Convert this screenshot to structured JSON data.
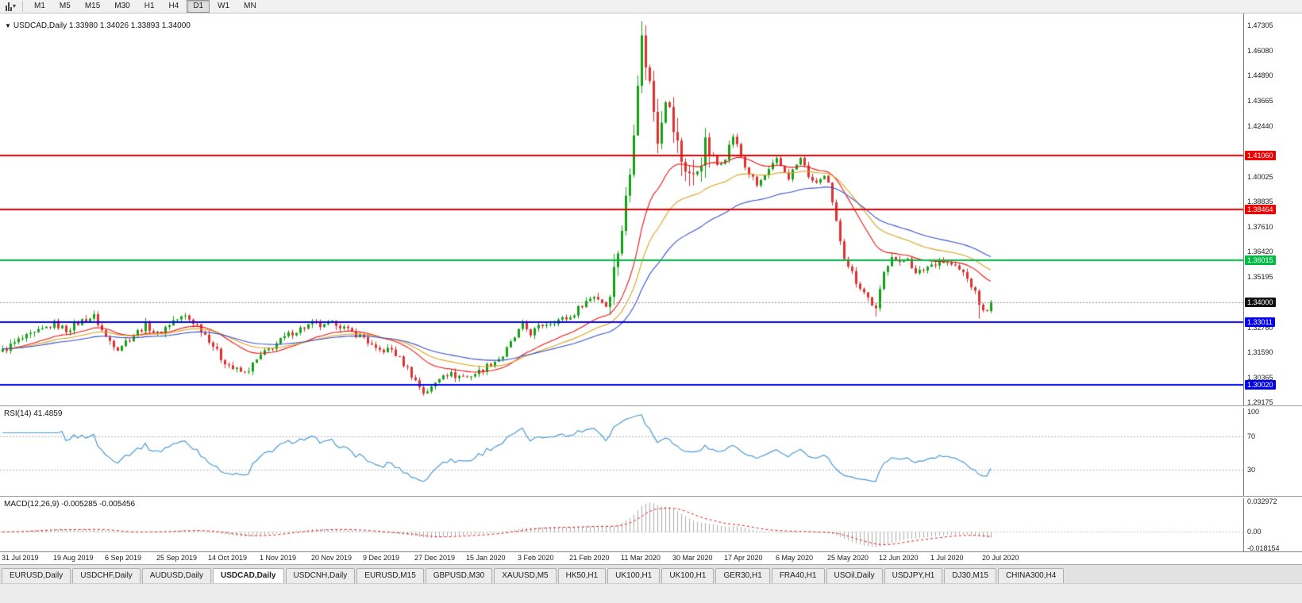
{
  "toolbar": {
    "timeframes": [
      "M1",
      "M5",
      "M15",
      "M30",
      "H1",
      "H4",
      "D1",
      "W1",
      "MN"
    ],
    "active_timeframe": "D1"
  },
  "icons": {
    "caret_down": "▾",
    "title_marker": "▼"
  },
  "tabs": {
    "items": [
      "EURUSD,Daily",
      "USDCHF,Daily",
      "AUDUSD,Daily",
      "USDCAD,Daily",
      "USDCNH,Daily",
      "EURUSD,M15",
      "GBPUSD,M30",
      "XAUUSD,M5",
      "HK50,H1",
      "UK100,H1",
      "UK100,H1",
      "GER30,H1",
      "FRA40,H1",
      "USOil,Daily",
      "USDJPY,H1",
      "DJ30,M15",
      "CHINA300,H4"
    ],
    "active_index": 3
  },
  "chart_data": {
    "type": "candlestick",
    "symbol": "USDCAD",
    "timeframe": "Daily",
    "title": "USDCAD,Daily 1.33980 1.34026 1.33893 1.34000",
    "last_ohlc": {
      "open": 1.3398,
      "high": 1.34026,
      "low": 1.33893,
      "close": 1.34
    },
    "candle_count": 250,
    "candles_per_label": 13,
    "x_labels": [
      "31 Jul 2019",
      "19 Aug 2019",
      "6 Sep 2019",
      "25 Sep 2019",
      "14 Oct 2019",
      "1 Nov 2019",
      "20 Nov 2019",
      "9 Dec 2019",
      "27 Dec 2019",
      "15 Jan 2020",
      "3 Feb 2020",
      "21 Feb 2020",
      "11 Mar 2020",
      "30 Mar 2020",
      "17 Apr 2020",
      "6 May 2020",
      "25 May 2020",
      "12 Jun 2020",
      "1 Jul 2020",
      "20 Jul 2020"
    ],
    "price_axis": {
      "min": 1.2902,
      "max": 1.4788,
      "tick_labels": [
        "1.47305",
        "1.46080",
        "1.44890",
        "1.43665",
        "1.42440",
        "1.40025",
        "1.38835",
        "1.37610",
        "1.36420",
        "1.35195",
        "1.32760",
        "1.31590",
        "1.30365",
        "1.29175"
      ]
    },
    "candle_colors": {
      "up": "#16A016",
      "down": "#E03030"
    },
    "close_keyframes": [
      [
        0,
        1.3165
      ],
      [
        4,
        1.3215
      ],
      [
        8,
        1.3245
      ],
      [
        13,
        1.3295
      ],
      [
        16,
        1.3265
      ],
      [
        20,
        1.331
      ],
      [
        23,
        1.333
      ],
      [
        26,
        1.323
      ],
      [
        29,
        1.318
      ],
      [
        33,
        1.324
      ],
      [
        36,
        1.329
      ],
      [
        39,
        1.3245
      ],
      [
        43,
        1.331
      ],
      [
        46,
        1.333
      ],
      [
        49,
        1.329
      ],
      [
        52,
        1.322
      ],
      [
        55,
        1.313
      ],
      [
        58,
        1.308
      ],
      [
        61,
        1.3055
      ],
      [
        65,
        1.314
      ],
      [
        69,
        1.32
      ],
      [
        73,
        1.3255
      ],
      [
        78,
        1.3295
      ],
      [
        81,
        1.328
      ],
      [
        84,
        1.33
      ],
      [
        87,
        1.326
      ],
      [
        91,
        1.323
      ],
      [
        94,
        1.3165
      ],
      [
        98,
        1.317
      ],
      [
        102,
        1.308
      ],
      [
        104,
        1.302
      ],
      [
        106,
        1.2965
      ],
      [
        108,
        1.2985
      ],
      [
        111,
        1.306
      ],
      [
        114,
        1.3045
      ],
      [
        117,
        1.304
      ],
      [
        120,
        1.3065
      ],
      [
        123,
        1.3105
      ],
      [
        126,
        1.314
      ],
      [
        129,
        1.323
      ],
      [
        131,
        1.329
      ],
      [
        133,
        1.325
      ],
      [
        136,
        1.329
      ],
      [
        139,
        1.331
      ],
      [
        143,
        1.3325
      ],
      [
        146,
        1.339
      ],
      [
        149,
        1.343
      ],
      [
        152,
        1.339
      ],
      [
        154,
        1.355
      ],
      [
        156,
        1.376
      ],
      [
        158,
        1.402
      ],
      [
        160,
        1.448
      ],
      [
        161,
        1.466
      ],
      [
        163,
        1.445
      ],
      [
        165,
        1.42
      ],
      [
        167,
        1.44
      ],
      [
        169,
        1.423
      ],
      [
        171,
        1.408
      ],
      [
        174,
        1.399
      ],
      [
        177,
        1.415
      ],
      [
        180,
        1.406
      ],
      [
        182,
        1.41
      ],
      [
        184,
        1.42
      ],
      [
        187,
        1.405
      ],
      [
        190,
        1.396
      ],
      [
        193,
        1.403
      ],
      [
        195,
        1.408
      ],
      [
        198,
        1.4
      ],
      [
        201,
        1.409
      ],
      [
        204,
        1.397
      ],
      [
        207,
        1.4
      ],
      [
        208,
        1.396
      ],
      [
        210,
        1.378
      ],
      [
        212,
        1.362
      ],
      [
        215,
        1.35
      ],
      [
        218,
        1.342
      ],
      [
        220,
        1.336
      ],
      [
        222,
        1.354
      ],
      [
        224,
        1.363
      ],
      [
        226,
        1.358
      ],
      [
        228,
        1.362
      ],
      [
        230,
        1.353
      ],
      [
        233,
        1.357
      ],
      [
        236,
        1.36
      ],
      [
        239,
        1.358
      ],
      [
        242,
        1.354
      ],
      [
        244,
        1.348
      ],
      [
        245,
        1.344
      ],
      [
        247,
        1.335
      ],
      [
        248,
        1.337
      ],
      [
        249,
        1.34
      ]
    ],
    "noise": {
      "base": 0.0016,
      "volatile": 0.005,
      "wick_base": 0.002,
      "wick_volatile": 0.007,
      "volatile_range": [
        152,
        178
      ]
    },
    "extremes": [
      {
        "index": 161,
        "kind": "high",
        "price": 1.4668
      },
      {
        "index": 106,
        "kind": "low",
        "price": 1.2952
      },
      {
        "index": 220,
        "kind": "low",
        "price": 1.333
      },
      {
        "index": 246,
        "kind": "low",
        "price": 1.332
      }
    ],
    "moving_averages": [
      {
        "name": "ma-fast",
        "type": "ema",
        "period": 21,
        "color": "#EE1111"
      },
      {
        "name": "ma-mid",
        "type": "ema",
        "period": 34,
        "color": "#D9A520"
      },
      {
        "name": "ma-slow",
        "type": "ema",
        "period": 55,
        "color": "#3A50CC"
      }
    ],
    "hlines": [
      {
        "price": 1.4106,
        "label": "1.41060",
        "color": "#EE0000"
      },
      {
        "price": 1.38464,
        "label": "1.38464",
        "color": "#EE0000"
      },
      {
        "price": 1.36015,
        "label": "1.36015",
        "color": "#00BB44"
      },
      {
        "price": 1.33011,
        "label": "1.33011",
        "color": "#0000EE"
      },
      {
        "price": 1.3002,
        "label": "1.30020",
        "color": "#0000EE"
      }
    ],
    "current_price": {
      "value": 1.34,
      "label": "1.34000",
      "color": "#101010"
    },
    "rsi": {
      "label": "RSI(14) 41.4859",
      "period": 14,
      "value": 41.4859,
      "levels": [
        70,
        30
      ],
      "axis_labels": [
        "100",
        "70",
        "30"
      ],
      "color": "#4D9BD5",
      "range": [
        0,
        100
      ]
    },
    "macd": {
      "label": "MACD(12,26,9) -0.005285 -0.005456",
      "fast": 12,
      "slow": 26,
      "signal_period": 9,
      "main_value": -0.005285,
      "signal_value": -0.005456,
      "axis_labels": [
        "0.032972",
        "0.00",
        "-0.018154"
      ],
      "range": [
        -0.0195,
        0.0355
      ],
      "histogram_color": "#ADADAD",
      "signal_color": "#E02020"
    }
  }
}
